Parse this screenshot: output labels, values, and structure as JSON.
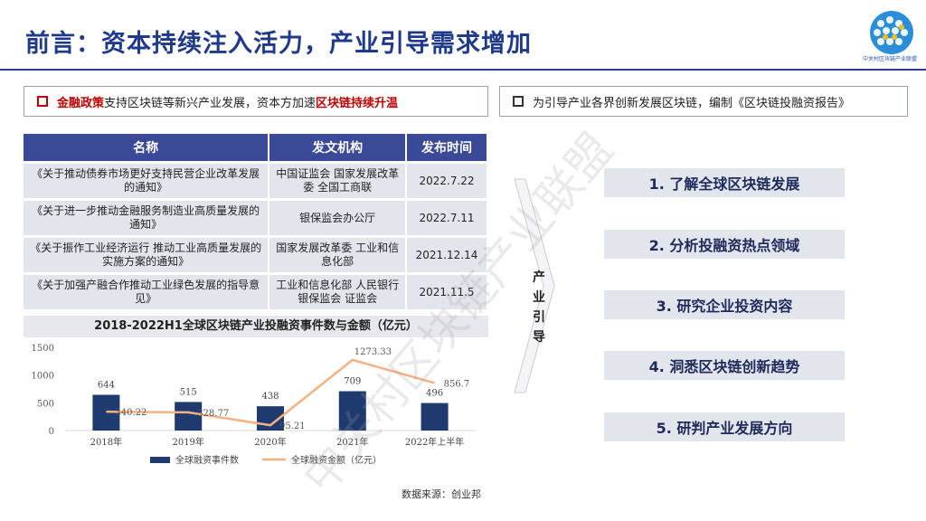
{
  "header": {
    "title": "前言：资本持续注入活力，产业引导需求增加",
    "logo_text": "中关村区块链产业联盟",
    "watermark": "中关村区块链产业联盟"
  },
  "left_bullet": {
    "part1": "金融政策",
    "part2": "支持区块链等新兴产业发展，资本方加速",
    "part3": "区块链持续升温"
  },
  "right_bullet": {
    "text": "为引导产业各界创新发展区块链，编制《区块链投融资报告》"
  },
  "policy_table": {
    "headers": [
      "名称",
      "发文机构",
      "发布时间"
    ],
    "rows": [
      {
        "name": "《关于推动债券市场更好支持民营企业改革发展的通知》",
        "org": "中国证监会 国家发展改革委 全国工商联",
        "date": "2022.7.22"
      },
      {
        "name": "《关于进一步推动金融服务制造业高质量发展的通知》",
        "org": "银保监会办公厅",
        "date": "2022.7.11"
      },
      {
        "name": "《关于振作工业经济运行 推动工业高质量发展的实施方案的通知》",
        "org": "国家发展改革委 工业和信息化部",
        "date": "2021.12.14"
      },
      {
        "name": "《关于加强产融合作推动工业绿色发展的指导意见》",
        "org": "工业和信息化部 人民银行 银保监会 证监会",
        "date": "2021.11.5"
      }
    ]
  },
  "chart_data": {
    "type": "bar",
    "title": "2018-2022H1全球区块链产业投融资事件数与金额（亿元）",
    "categories": [
      "2018年",
      "2019年",
      "2020年",
      "2021年",
      "2022年上半年"
    ],
    "series": [
      {
        "name": "全球融资事件数",
        "type": "bar",
        "values": [
          644,
          515,
          438,
          709,
          496
        ],
        "color": "#1f3a6e"
      },
      {
        "name": "全球融资金额（亿元）",
        "type": "line",
        "values": [
          340.22,
          328.77,
          95.21,
          1273.33,
          856.7
        ],
        "color": "#f4b183"
      }
    ],
    "ylim": [
      0,
      1500
    ],
    "yticks": [
      0,
      500,
      1000,
      1500
    ],
    "legend": "bottom",
    "grid": false
  },
  "source": "数据来源：创业邦",
  "guide": {
    "label": "产业引导",
    "steps": [
      "1. 了解全球区块链发展",
      "2. 分析投融资热点领域",
      "3. 研究企业投资内容",
      "4. 洞悉区块链创新趋势",
      "5. 研判产业发展方向"
    ]
  }
}
